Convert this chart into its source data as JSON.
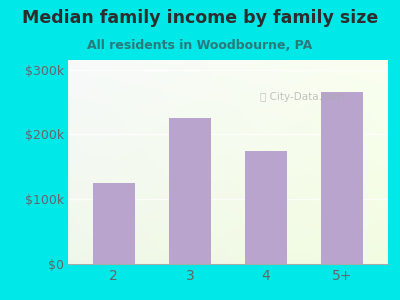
{
  "categories": [
    "2",
    "3",
    "4",
    "5+"
  ],
  "values": [
    125000,
    225000,
    175000,
    265000
  ],
  "bar_color": "#b8a4cc",
  "title": "Median family income by family size",
  "subtitle": "All residents in Woodbourne, PA",
  "ylabel_ticks": [
    0,
    100000,
    200000,
    300000
  ],
  "ylabel_labels": [
    "$0",
    "$100k",
    "$200k",
    "$300k"
  ],
  "ylim": [
    0,
    315000
  ],
  "background_outer": "#00e8e8",
  "title_color": "#2d2d2d",
  "subtitle_color": "#2a7a7a",
  "tick_color": "#666666",
  "watermark": "City-Data.com",
  "title_fontsize": 12.5,
  "subtitle_fontsize": 9.0
}
